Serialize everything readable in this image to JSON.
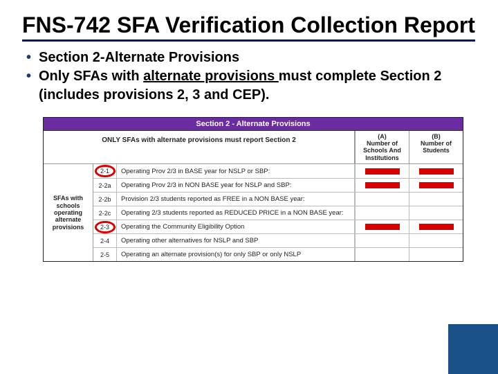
{
  "title": "FNS-742  SFA Verification Collection Report",
  "bullets": {
    "b1": "Section 2-Alternate Provisions",
    "b2_pre": "Only SFAs with ",
    "b2_u": "alternate provisions ",
    "b2_post": "must complete Section 2 (includes provisions 2, 3 and CEP)."
  },
  "table": {
    "header": "Section 2 - Alternate Provisions",
    "subheader": "ONLY SFAs with alternate provisions must report Section 2",
    "colA_l1": "(A)",
    "colA_l2": "Number of Schools And Institutions",
    "colB_l1": "(B)",
    "colB_l2": "Number of Students",
    "side": "SFAs with schools operating alternate provisions",
    "rows": [
      {
        "code": "2-1",
        "text": "Operating Prov 2/3 in BASE year for NSLP or SBP:",
        "circled": true,
        "redactA": true,
        "redactB": true
      },
      {
        "code": "2-2a",
        "text": "Operating Prov 2/3 in NON BASE year for NSLP and SBP:",
        "circled": false,
        "redactA": true,
        "redactB": true
      },
      {
        "code": "2-2b",
        "text": "Provision 2/3 students reported as FREE in a NON BASE year:",
        "circled": false,
        "redactA": false,
        "redactB": false
      },
      {
        "code": "2-2c",
        "text": "Operating 2/3 students reported as REDUCED PRICE in a NON BASE year:",
        "circled": false,
        "redactA": false,
        "redactB": false
      },
      {
        "code": "2-3",
        "text": "Operating the Community Eligibility Option",
        "circled": true,
        "redactA": true,
        "redactB": true
      },
      {
        "code": "2-4",
        "text": "Operating other alternatives for NSLP and SBP",
        "circled": false,
        "redactA": false,
        "redactB": false
      },
      {
        "code": "2-5",
        "text": "Operating an alternate provision(s) for only SBP or only NSLP",
        "circled": false,
        "redactA": false,
        "redactB": false
      }
    ]
  },
  "colors": {
    "title_underline": "#001e5a",
    "bullet": "#1a3a6b",
    "purple": "#6a2ca0",
    "red": "#d90000",
    "accent": "#1b4f87"
  }
}
